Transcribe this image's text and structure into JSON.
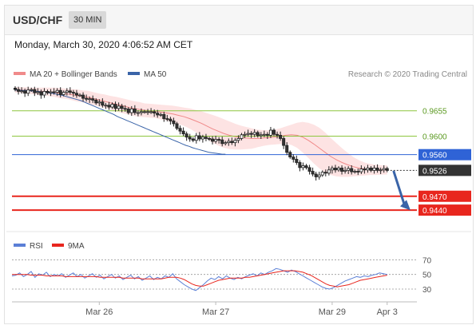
{
  "header": {
    "symbol": "USD/CHF",
    "timeframe": "30 MIN"
  },
  "datetime": "Monday, March 30, 2020 4:06:52 AM CET",
  "legend": {
    "bb_label": "MA 20 + Bollinger Bands",
    "ma50_label": "MA 50",
    "credit": "Research © 2020 Trading Central"
  },
  "rsi_legend": {
    "rsi_label": "RSI",
    "ma9_label": "9MA"
  },
  "colors": {
    "bb": "#f08a8a",
    "ma50": "#3a64a8",
    "bull": "#ffffff",
    "bear": "#333333",
    "green": "#8dc63f",
    "blue": "#2f63d6",
    "red": "#e8261e",
    "rsi": "#5b7fd6",
    "ma9": "#e8261e"
  },
  "chart_data": [
    {
      "type": "candlestick",
      "title": "USD/CHF",
      "x_tick_labels": [
        "Mar 26",
        "Mar 27",
        "Mar 29",
        "Apr 3"
      ],
      "ylim": [
        0.9397,
        0.9715
      ],
      "current_price": 0.9526,
      "levels": [
        {
          "label": "0.9655",
          "value": 0.9655,
          "color": "green"
        },
        {
          "label": "0.9600",
          "value": 0.96,
          "color": "green"
        },
        {
          "label": "0.9560",
          "value": 0.956,
          "color": "blue"
        },
        {
          "label": "0.9470",
          "value": 0.947,
          "color": "red"
        },
        {
          "label": "0.9440",
          "value": 0.944,
          "color": "red"
        }
      ],
      "current_label": "0.9526",
      "trend_arrow": {
        "from": 0.9525,
        "to": 0.9443,
        "direction": "down"
      },
      "close": [
        0.9701,
        0.9697,
        0.9698,
        0.9693,
        0.97,
        0.9701,
        0.9694,
        0.9696,
        0.9689,
        0.9697,
        0.9694,
        0.9696,
        0.9695,
        0.9699,
        0.969,
        0.9695,
        0.9698,
        0.9695,
        0.9693,
        0.9689,
        0.9689,
        0.9682,
        0.968,
        0.9681,
        0.9678,
        0.9672,
        0.9674,
        0.9667,
        0.9667,
        0.9663,
        0.9669,
        0.966,
        0.9665,
        0.966,
        0.9659,
        0.9651,
        0.9659,
        0.9651,
        0.9651,
        0.9653,
        0.9653,
        0.9653,
        0.9653,
        0.965,
        0.9646,
        0.9647,
        0.9638,
        0.9637,
        0.9633,
        0.9627,
        0.9617,
        0.9611,
        0.9605,
        0.9598,
        0.9594,
        0.9591,
        0.9601,
        0.9594,
        0.9598,
        0.9595,
        0.9594,
        0.9589,
        0.9593,
        0.9592,
        0.9584,
        0.9586,
        0.9589,
        0.9586,
        0.9591,
        0.9595,
        0.9603,
        0.9604,
        0.9606,
        0.9604,
        0.9608,
        0.9601,
        0.9603,
        0.9604,
        0.9602,
        0.9613,
        0.9604,
        0.9602,
        0.9595,
        0.958,
        0.9565,
        0.9555,
        0.955,
        0.9543,
        0.9532,
        0.9536,
        0.9532,
        0.9524,
        0.9518,
        0.9512,
        0.9516,
        0.9522,
        0.952,
        0.9527,
        0.9531,
        0.9527,
        0.9531,
        0.9524,
        0.9526,
        0.953,
        0.9523,
        0.9524,
        0.9523,
        0.9529,
        0.9527,
        0.9531,
        0.9526,
        0.9531,
        0.9526,
        0.9527,
        0.953,
        0.9526
      ],
      "ma50": [
        0.97,
        0.97,
        0.9699,
        0.9699,
        0.9698,
        0.9698,
        0.9697,
        0.9697,
        0.9696,
        0.9695,
        0.9694,
        0.9693,
        0.9692,
        0.969,
        0.9689,
        0.9687,
        0.9685,
        0.9683,
        0.9681,
        0.9679,
        0.9677,
        0.9674,
        0.9671,
        0.9668,
        0.9665,
        0.9662,
        0.9659,
        0.9656,
        0.9653,
        0.965,
        0.9647,
        0.9643,
        0.964,
        0.9637,
        0.9634,
        0.9631,
        0.9628,
        0.9625,
        0.9622,
        0.9619,
        0.9616,
        0.9613,
        0.961,
        0.9607,
        0.9604,
        0.9601,
        0.9598,
        0.9595,
        0.9592,
        0.9589,
        0.9586,
        0.9583,
        0.958,
        0.9578,
        0.9575,
        0.9573,
        0.9571,
        0.9569,
        0.9567,
        0.9565,
        0.9564,
        0.9563,
        0.9562,
        0.9561,
        0.9561
      ],
      "ma50_start_index": 50,
      "ma20": [
        0.97,
        0.97,
        0.9699,
        0.9698,
        0.9697,
        0.9697,
        0.9696,
        0.9695,
        0.9693,
        0.9692,
        0.969,
        0.9688,
        0.9686,
        0.9684,
        0.9681,
        0.9678,
        0.9675,
        0.9672,
        0.9669,
        0.9666,
        0.9663,
        0.966,
        0.9658,
        0.9656,
        0.9655,
        0.9654,
        0.9652,
        0.965,
        0.9648,
        0.9645,
        0.9642,
        0.9638,
        0.9633,
        0.9628,
        0.9622,
        0.9616,
        0.9611,
        0.9606,
        0.9602,
        0.9599,
        0.9597,
        0.9596,
        0.9595,
        0.9595,
        0.9596,
        0.9597,
        0.9598,
        0.96,
        0.9602,
        0.9603,
        0.9602,
        0.9598,
        0.9591,
        0.9583,
        0.9574,
        0.9565,
        0.9556,
        0.9549,
        0.9543,
        0.9538,
        0.9534,
        0.9531,
        0.9529,
        0.9528,
        0.9527,
        0.9527,
        0.9527
      ],
      "bb_halfwidth": [
        0.0006,
        0.0006,
        0.0007,
        0.0007,
        0.0008,
        0.0008,
        0.0009,
        0.001,
        0.0011,
        0.0011,
        0.0012,
        0.0013,
        0.0013,
        0.0014,
        0.0014,
        0.0014,
        0.0015,
        0.0015,
        0.0016,
        0.0016,
        0.0016,
        0.0016,
        0.0016,
        0.0015,
        0.0015,
        0.0015,
        0.0016,
        0.0017,
        0.0018,
        0.0019,
        0.002,
        0.0022,
        0.0024,
        0.0026,
        0.0028,
        0.003,
        0.0031,
        0.0031,
        0.003,
        0.0028,
        0.0026,
        0.0024,
        0.0022,
        0.0019,
        0.0017,
        0.0016,
        0.0016,
        0.0017,
        0.0019,
        0.0022,
        0.0027,
        0.0033,
        0.0038,
        0.0042,
        0.0044,
        0.0043,
        0.004,
        0.0036,
        0.0031,
        0.0026,
        0.0021,
        0.0017,
        0.0014,
        0.0012,
        0.0011,
        0.001,
        0.001
      ]
    },
    {
      "type": "line",
      "title": "RSI",
      "y_ticks": [
        30,
        50,
        70
      ],
      "ylim": [
        18,
        78
      ],
      "series": [
        {
          "name": "RSI",
          "values": [
            48,
            49,
            52,
            47,
            50,
            54,
            46,
            51,
            49,
            53,
            47,
            50,
            48,
            51,
            46,
            49,
            52,
            47,
            50,
            45,
            48,
            51,
            46,
            49,
            44,
            47,
            50,
            45,
            48,
            43,
            46,
            49,
            44,
            47,
            42,
            45,
            48,
            43,
            46,
            44,
            48,
            46,
            51,
            44,
            40,
            36,
            33,
            30,
            28,
            32,
            36,
            41,
            45,
            43,
            47,
            44,
            48,
            45,
            43,
            46,
            44,
            47,
            49,
            51,
            48,
            52,
            50,
            53,
            55,
            58,
            57,
            55,
            53,
            56,
            54,
            51,
            48,
            45,
            42,
            39,
            36,
            33,
            31,
            30,
            32,
            35,
            38,
            41,
            43,
            45,
            47,
            46,
            48,
            47,
            49,
            50,
            52,
            51,
            50
          ]
        },
        {
          "name": "9MA",
          "values": [
            50,
            50,
            50,
            50,
            50,
            49,
            49,
            49,
            49,
            48,
            48,
            48,
            48,
            48,
            47,
            47,
            47,
            47,
            47,
            47,
            47,
            47,
            47,
            46,
            46,
            46,
            46,
            46,
            46,
            45,
            45,
            45,
            45,
            45,
            44,
            44,
            44,
            44,
            44,
            44,
            45,
            46,
            46,
            46,
            45,
            43,
            40,
            37,
            35,
            34,
            34,
            36,
            38,
            40,
            42,
            43,
            44,
            45,
            45,
            45,
            45,
            46,
            46,
            47,
            48,
            49,
            50,
            51,
            52,
            53,
            54,
            55,
            55,
            55,
            55,
            54,
            53,
            51,
            49,
            46,
            43,
            40,
            37,
            35,
            34,
            33,
            34,
            35,
            36,
            38,
            40,
            42,
            43,
            44,
            45,
            46,
            47,
            48,
            49
          ]
        }
      ]
    }
  ]
}
